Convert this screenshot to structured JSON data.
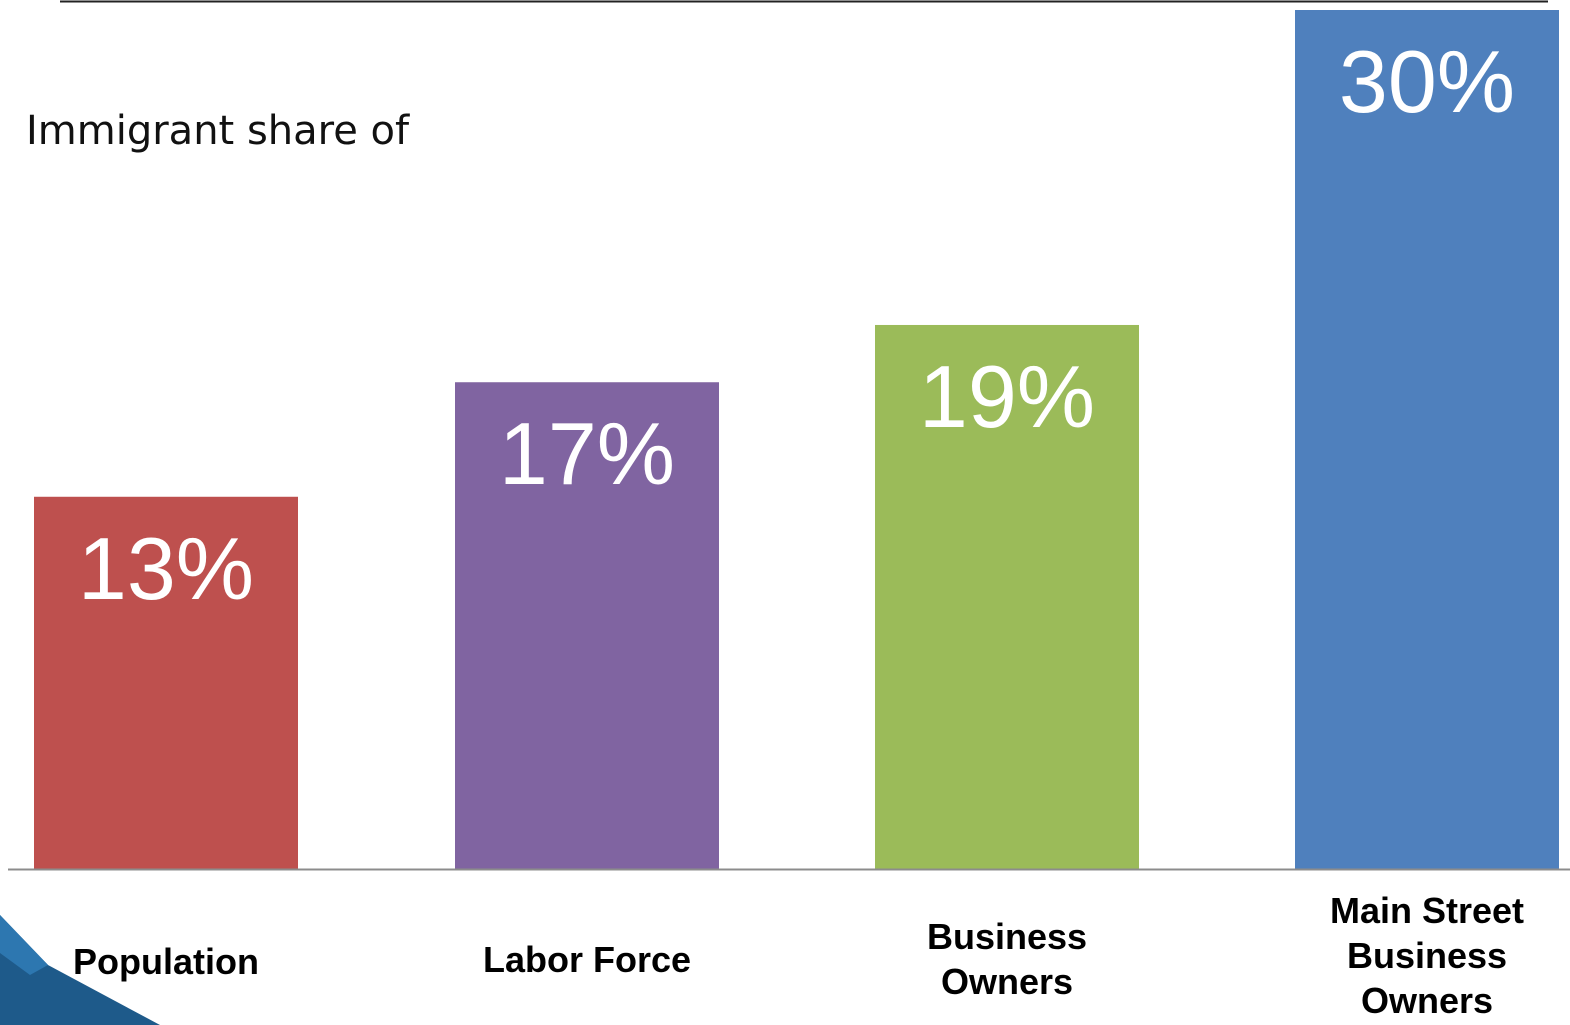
{
  "chart_data": {
    "type": "bar",
    "title": "",
    "subtitle": "Immigrant share of",
    "categories": [
      "Population",
      "Labor Force",
      "Business\nOwners",
      "Main Street\nBusiness\nOwners"
    ],
    "values": [
      13,
      17,
      19,
      30
    ],
    "value_labels": [
      "13%",
      "17%",
      "19%",
      "30%"
    ],
    "colors": [
      "#be504e",
      "#8064a1",
      "#9bbb59",
      "#4f80bd"
    ],
    "ylim": [
      0,
      30
    ],
    "grid": false,
    "legend": "none"
  }
}
